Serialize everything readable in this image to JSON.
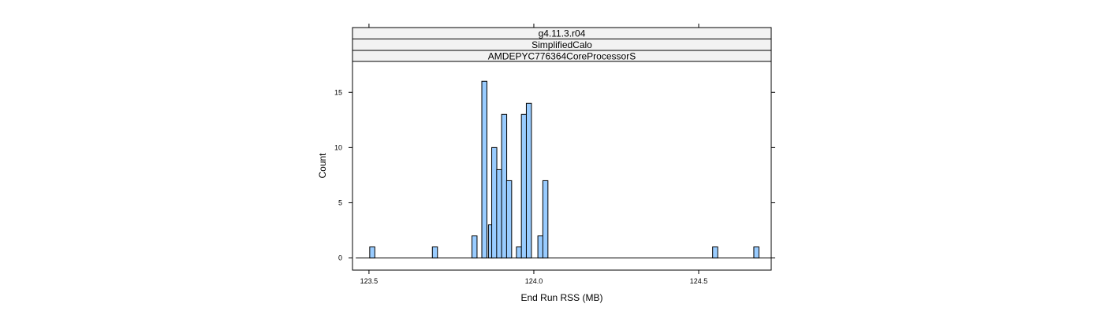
{
  "chart_data": {
    "type": "bar",
    "panel_strips": [
      "g4.11.3.r04",
      "SimplifiedCalo",
      "AMDEPYC776364CoreProcessorS"
    ],
    "xlabel": "End Run RSS (MB)",
    "ylabel": "Count",
    "x_ticks": [
      123.5,
      124.0,
      124.5
    ],
    "x_tick_labels": [
      "123.5",
      "124.0",
      "124.5"
    ],
    "y_ticks": [
      0,
      5,
      10,
      15
    ],
    "y_tick_labels": [
      "0",
      "5",
      "10",
      "15"
    ],
    "xlim": [
      123.45,
      124.72
    ],
    "ylim": [
      -1.1,
      17.8
    ],
    "bin_width": 0.0155,
    "baseline_range": [
      123.46,
      124.72
    ],
    "bar_color": "#99ccff",
    "bars": [
      {
        "x": 123.51,
        "count": 1
      },
      {
        "x": 123.7,
        "count": 1
      },
      {
        "x": 123.82,
        "count": 2
      },
      {
        "x": 123.85,
        "count": 16
      },
      {
        "x": 123.87,
        "count": 3
      },
      {
        "x": 123.88,
        "count": 10
      },
      {
        "x": 123.895,
        "count": 8
      },
      {
        "x": 123.91,
        "count": 13
      },
      {
        "x": 123.925,
        "count": 7
      },
      {
        "x": 123.955,
        "count": 1
      },
      {
        "x": 123.97,
        "count": 13
      },
      {
        "x": 123.985,
        "count": 14
      },
      {
        "x": 124.02,
        "count": 2
      },
      {
        "x": 124.035,
        "count": 7
      },
      {
        "x": 124.55,
        "count": 1
      },
      {
        "x": 124.675,
        "count": 1
      }
    ]
  }
}
